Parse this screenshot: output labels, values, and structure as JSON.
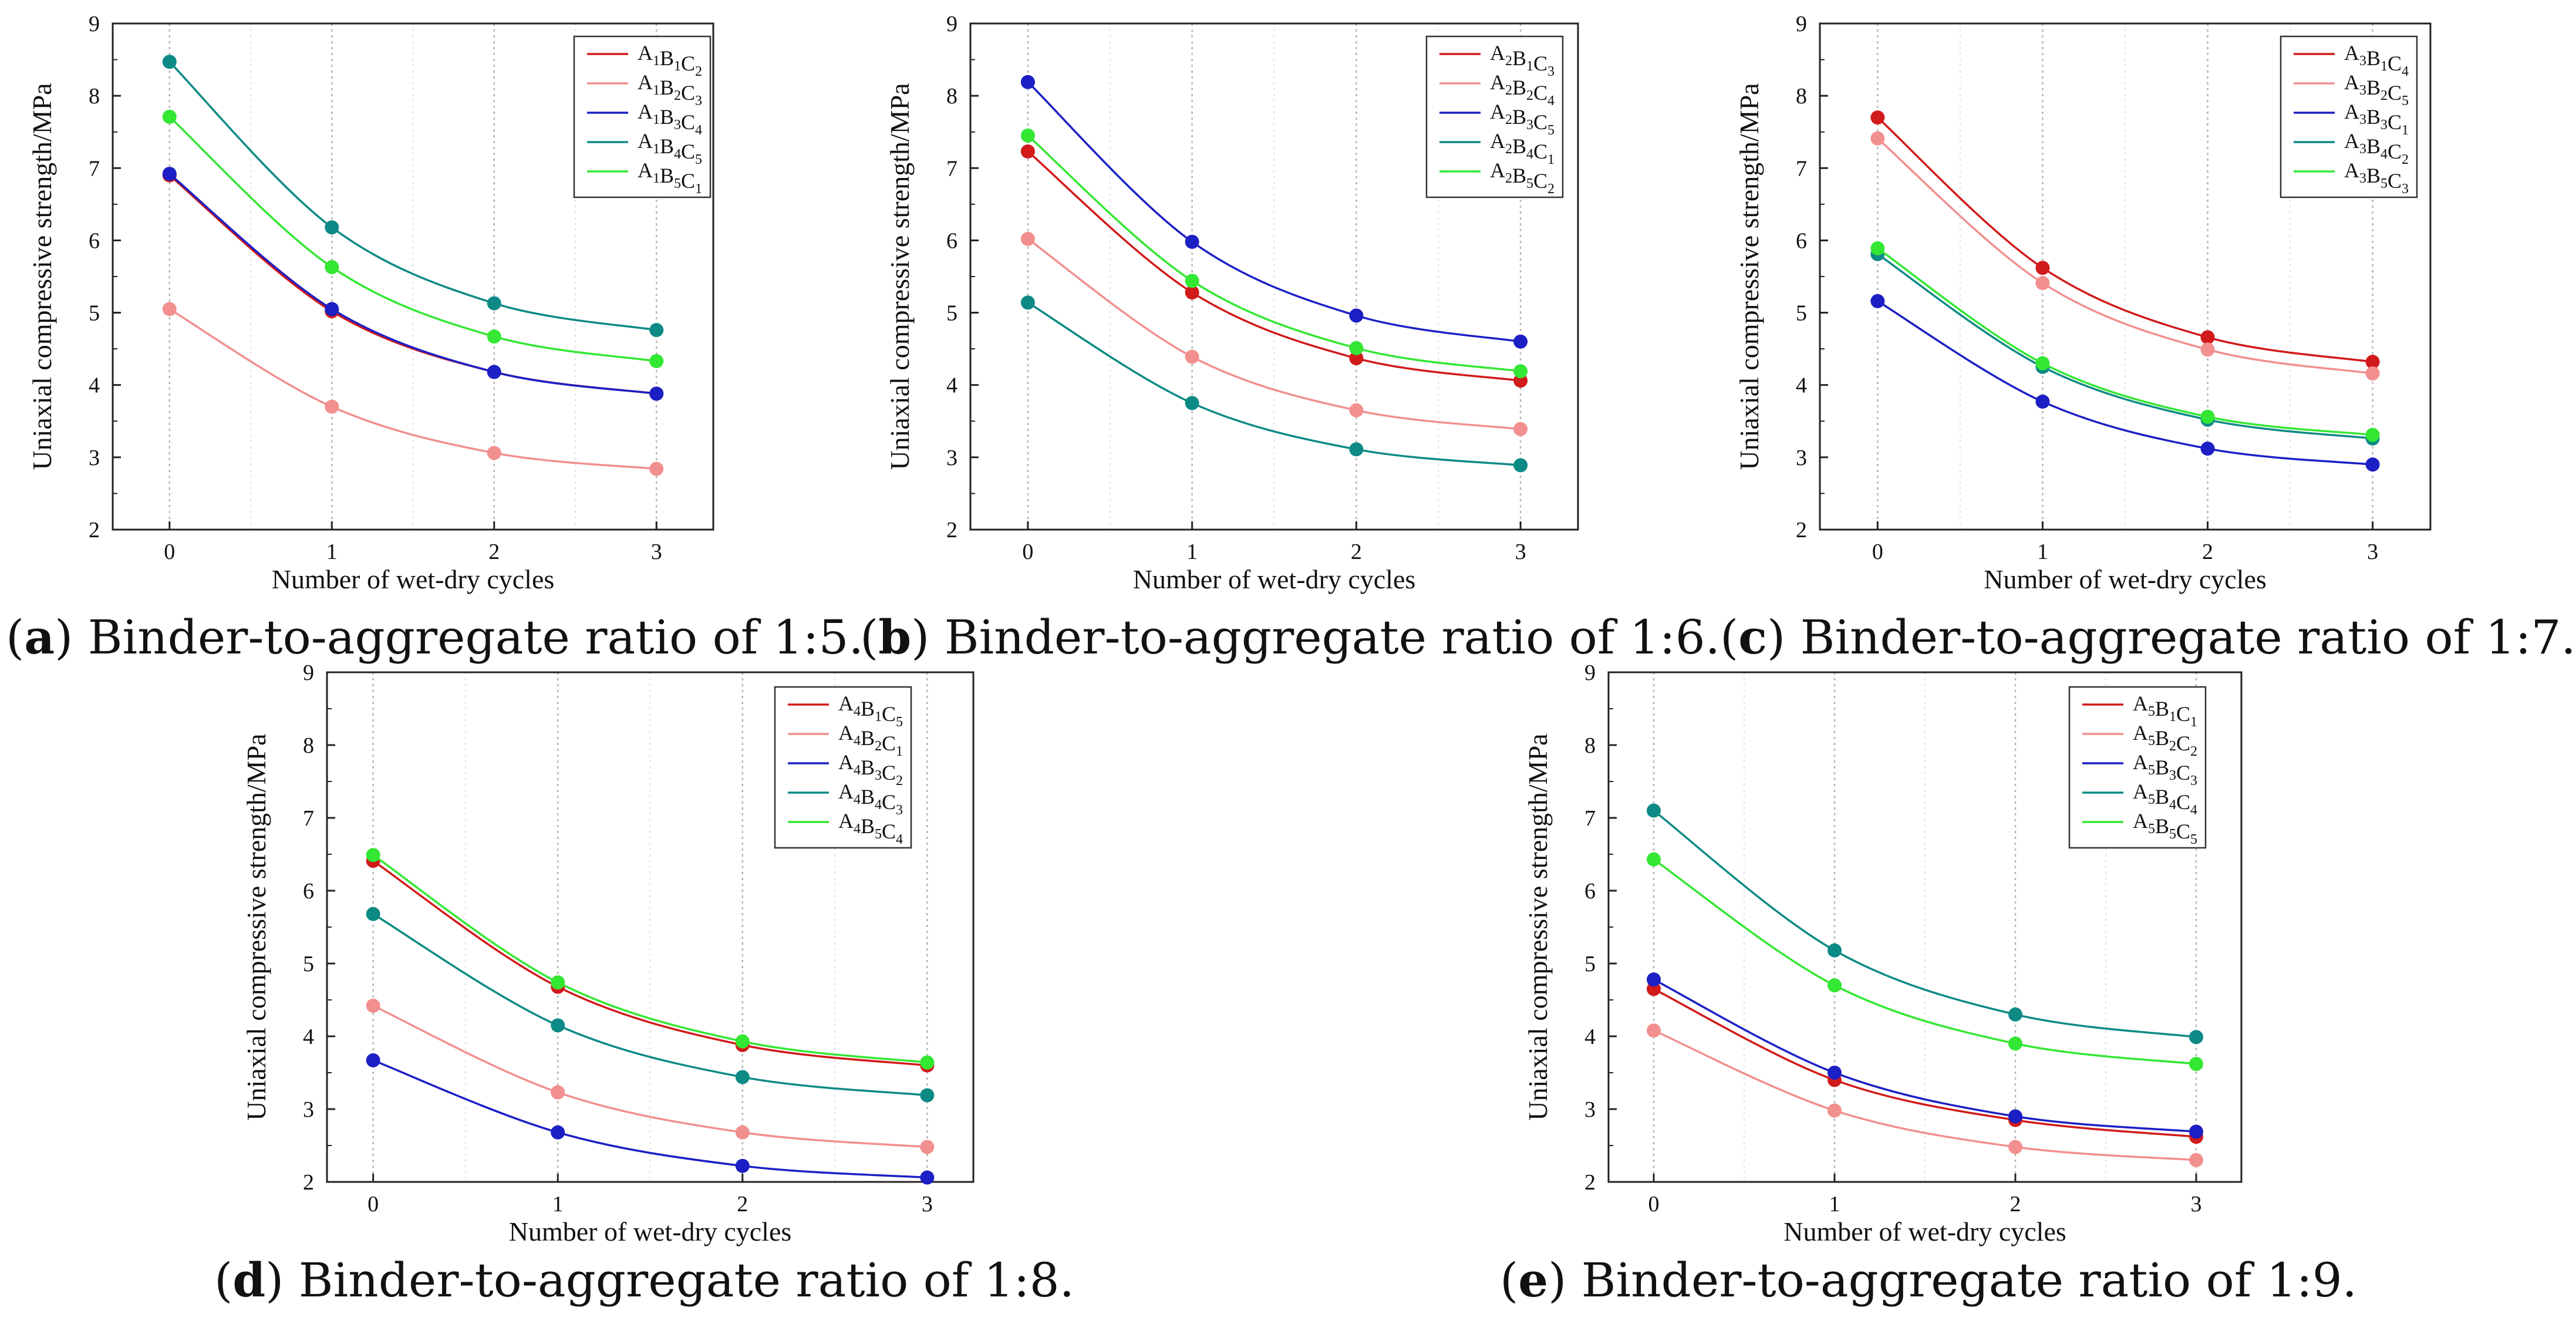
{
  "colors": {
    "red": "#d11a1a",
    "pink": "#f28f8f",
    "blue": "#1c1fc4",
    "teal": "#0d8a85",
    "green": "#33e733"
  },
  "chart_data": [
    {
      "type": "line",
      "panel": "a",
      "caption": {
        "letter": "a",
        "text": "Binder-to-aggregate ratio of 1:5."
      },
      "xlabel": "Number of wet-dry cycles",
      "ylabel": "Uniaxial compressive strength/MPa",
      "xlim": [
        -0.35,
        3.35
      ],
      "ylim": [
        2,
        9
      ],
      "xticks": [
        0,
        1,
        2,
        3
      ],
      "yticks": [
        2,
        3,
        4,
        5,
        6,
        7,
        8,
        9
      ],
      "legend_position": "top-right",
      "x": [
        0,
        1,
        2,
        3
      ],
      "series": [
        {
          "name": "A1B1C2",
          "label": {
            "a": "1",
            "b": "1",
            "c": "2"
          },
          "color": "red",
          "values": [
            6.9,
            5.02,
            4.18,
            3.88
          ]
        },
        {
          "name": "A1B2C3",
          "label": {
            "a": "1",
            "b": "2",
            "c": "3"
          },
          "color": "pink",
          "values": [
            5.05,
            3.7,
            3.06,
            2.84
          ]
        },
        {
          "name": "A1B3C4",
          "label": {
            "a": "1",
            "b": "3",
            "c": "4"
          },
          "color": "blue",
          "values": [
            6.92,
            5.05,
            4.18,
            3.88
          ]
        },
        {
          "name": "A1B4C5",
          "label": {
            "a": "1",
            "b": "4",
            "c": "5"
          },
          "color": "teal",
          "values": [
            8.47,
            6.18,
            5.13,
            4.76
          ]
        },
        {
          "name": "A1B5C1",
          "label": {
            "a": "1",
            "b": "5",
            "c": "1"
          },
          "color": "green",
          "values": [
            7.71,
            5.63,
            4.67,
            4.33
          ]
        }
      ]
    },
    {
      "type": "line",
      "panel": "b",
      "caption": {
        "letter": "b",
        "text": "Binder-to-aggregate ratio of 1:6."
      },
      "xlabel": "Number of wet-dry cycles",
      "ylabel": "Uniaxial compressive strength/MPa",
      "xlim": [
        -0.35,
        3.35
      ],
      "ylim": [
        2,
        9
      ],
      "xticks": [
        0,
        1,
        2,
        3
      ],
      "yticks": [
        2,
        3,
        4,
        5,
        6,
        7,
        8,
        9
      ],
      "legend_position": "top-right",
      "x": [
        0,
        1,
        2,
        3
      ],
      "series": [
        {
          "name": "A2B1C3",
          "label": {
            "a": "2",
            "b": "1",
            "c": "3"
          },
          "color": "red",
          "values": [
            7.23,
            5.28,
            4.37,
            4.06
          ]
        },
        {
          "name": "A2B2C4",
          "label": {
            "a": "2",
            "b": "2",
            "c": "4"
          },
          "color": "pink",
          "values": [
            6.02,
            4.39,
            3.65,
            3.39
          ]
        },
        {
          "name": "A2B3C5",
          "label": {
            "a": "2",
            "b": "3",
            "c": "5"
          },
          "color": "blue",
          "values": [
            8.19,
            5.98,
            4.96,
            4.6
          ]
        },
        {
          "name": "A2B4C1",
          "label": {
            "a": "2",
            "b": "4",
            "c": "1"
          },
          "color": "teal",
          "values": [
            5.14,
            3.75,
            3.11,
            2.89
          ]
        },
        {
          "name": "A2B5C2",
          "label": {
            "a": "2",
            "b": "5",
            "c": "2"
          },
          "color": "green",
          "values": [
            7.45,
            5.44,
            4.51,
            4.19
          ]
        }
      ]
    },
    {
      "type": "line",
      "panel": "c",
      "caption": {
        "letter": "c",
        "text": "Binder-to-aggregate ratio of 1:7."
      },
      "xlabel": "Number of wet-dry cycles",
      "ylabel": "Uniaxial compressive strength/MPa",
      "xlim": [
        -0.35,
        3.35
      ],
      "ylim": [
        2,
        9
      ],
      "xticks": [
        0,
        1,
        2,
        3
      ],
      "yticks": [
        2,
        3,
        4,
        5,
        6,
        7,
        8,
        9
      ],
      "legend_position": "top-right",
      "x": [
        0,
        1,
        2,
        3
      ],
      "series": [
        {
          "name": "A3B1C4",
          "label": {
            "a": "3",
            "b": "1",
            "c": "4"
          },
          "color": "red",
          "values": [
            7.7,
            5.62,
            4.66,
            4.32
          ]
        },
        {
          "name": "A3B2C5",
          "label": {
            "a": "3",
            "b": "2",
            "c": "5"
          },
          "color": "pink",
          "values": [
            7.41,
            5.41,
            4.49,
            4.16
          ]
        },
        {
          "name": "A3B3C1",
          "label": {
            "a": "3",
            "b": "3",
            "c": "1"
          },
          "color": "blue",
          "values": [
            5.16,
            3.77,
            3.12,
            2.9
          ]
        },
        {
          "name": "A3B4C2",
          "label": {
            "a": "3",
            "b": "4",
            "c": "2"
          },
          "color": "teal",
          "values": [
            5.81,
            4.25,
            3.52,
            3.26
          ]
        },
        {
          "name": "A3B5C3",
          "label": {
            "a": "3",
            "b": "5",
            "c": "3"
          },
          "color": "green",
          "values": [
            5.89,
            4.3,
            3.56,
            3.31
          ]
        }
      ]
    },
    {
      "type": "line",
      "panel": "d",
      "caption": {
        "letter": "d",
        "text": "Binder-to-aggregate ratio of 1:8."
      },
      "xlabel": "Number of wet-dry cycles",
      "ylabel": "Uniaxial compressive strength/MPa",
      "xlim": [
        -0.25,
        3.25
      ],
      "ylim": [
        2,
        9
      ],
      "xticks": [
        0,
        1,
        2,
        3
      ],
      "yticks": [
        2,
        3,
        4,
        5,
        6,
        7,
        8,
        9
      ],
      "legend_position": "top-right",
      "x": [
        0,
        1,
        2,
        3
      ],
      "series": [
        {
          "name": "A4B1C5",
          "label": {
            "a": "4",
            "b": "1",
            "c": "5"
          },
          "color": "red",
          "values": [
            6.41,
            4.68,
            3.88,
            3.6
          ]
        },
        {
          "name": "A4B2C1",
          "label": {
            "a": "4",
            "b": "2",
            "c": "1"
          },
          "color": "pink",
          "values": [
            4.42,
            3.23,
            2.68,
            2.48
          ]
        },
        {
          "name": "A4B3C2",
          "label": {
            "a": "4",
            "b": "3",
            "c": "2"
          },
          "color": "blue",
          "values": [
            3.67,
            2.68,
            2.22,
            2.06
          ]
        },
        {
          "name": "A4B4C3",
          "label": {
            "a": "4",
            "b": "4",
            "c": "3"
          },
          "color": "teal",
          "values": [
            5.68,
            4.15,
            3.44,
            3.19
          ]
        },
        {
          "name": "A4B5C4",
          "label": {
            "a": "4",
            "b": "5",
            "c": "4"
          },
          "color": "green",
          "values": [
            6.49,
            4.74,
            3.93,
            3.64
          ]
        }
      ]
    },
    {
      "type": "line",
      "panel": "e",
      "caption": {
        "letter": "e",
        "text": "Binder-to-aggregate ratio of 1:9."
      },
      "xlabel": "Number of wet-dry cycles",
      "ylabel": "Uniaxial compressive strength/MPa",
      "xlim": [
        -0.25,
        3.25
      ],
      "ylim": [
        2,
        9
      ],
      "xticks": [
        0,
        1,
        2,
        3
      ],
      "yticks": [
        2,
        3,
        4,
        5,
        6,
        7,
        8,
        9
      ],
      "legend_position": "top-right",
      "x": [
        0,
        1,
        2,
        3
      ],
      "series": [
        {
          "name": "A5B1C1",
          "label": {
            "a": "5",
            "b": "1",
            "c": "1"
          },
          "color": "red",
          "values": [
            4.65,
            3.4,
            2.85,
            2.62
          ]
        },
        {
          "name": "A5B2C2",
          "label": {
            "a": "5",
            "b": "2",
            "c": "2"
          },
          "color": "pink",
          "values": [
            4.08,
            2.98,
            2.48,
            2.3
          ]
        },
        {
          "name": "A5B3C3",
          "label": {
            "a": "5",
            "b": "3",
            "c": "3"
          },
          "color": "blue",
          "values": [
            4.78,
            3.5,
            2.9,
            2.69
          ]
        },
        {
          "name": "A5B4C4",
          "label": {
            "a": "5",
            "b": "4",
            "c": "4"
          },
          "color": "teal",
          "values": [
            7.1,
            5.18,
            4.3,
            3.99
          ]
        },
        {
          "name": "A5B5C5",
          "label": {
            "a": "5",
            "b": "5",
            "c": "5"
          },
          "color": "green",
          "values": [
            6.43,
            4.7,
            3.9,
            3.62
          ]
        }
      ]
    }
  ]
}
